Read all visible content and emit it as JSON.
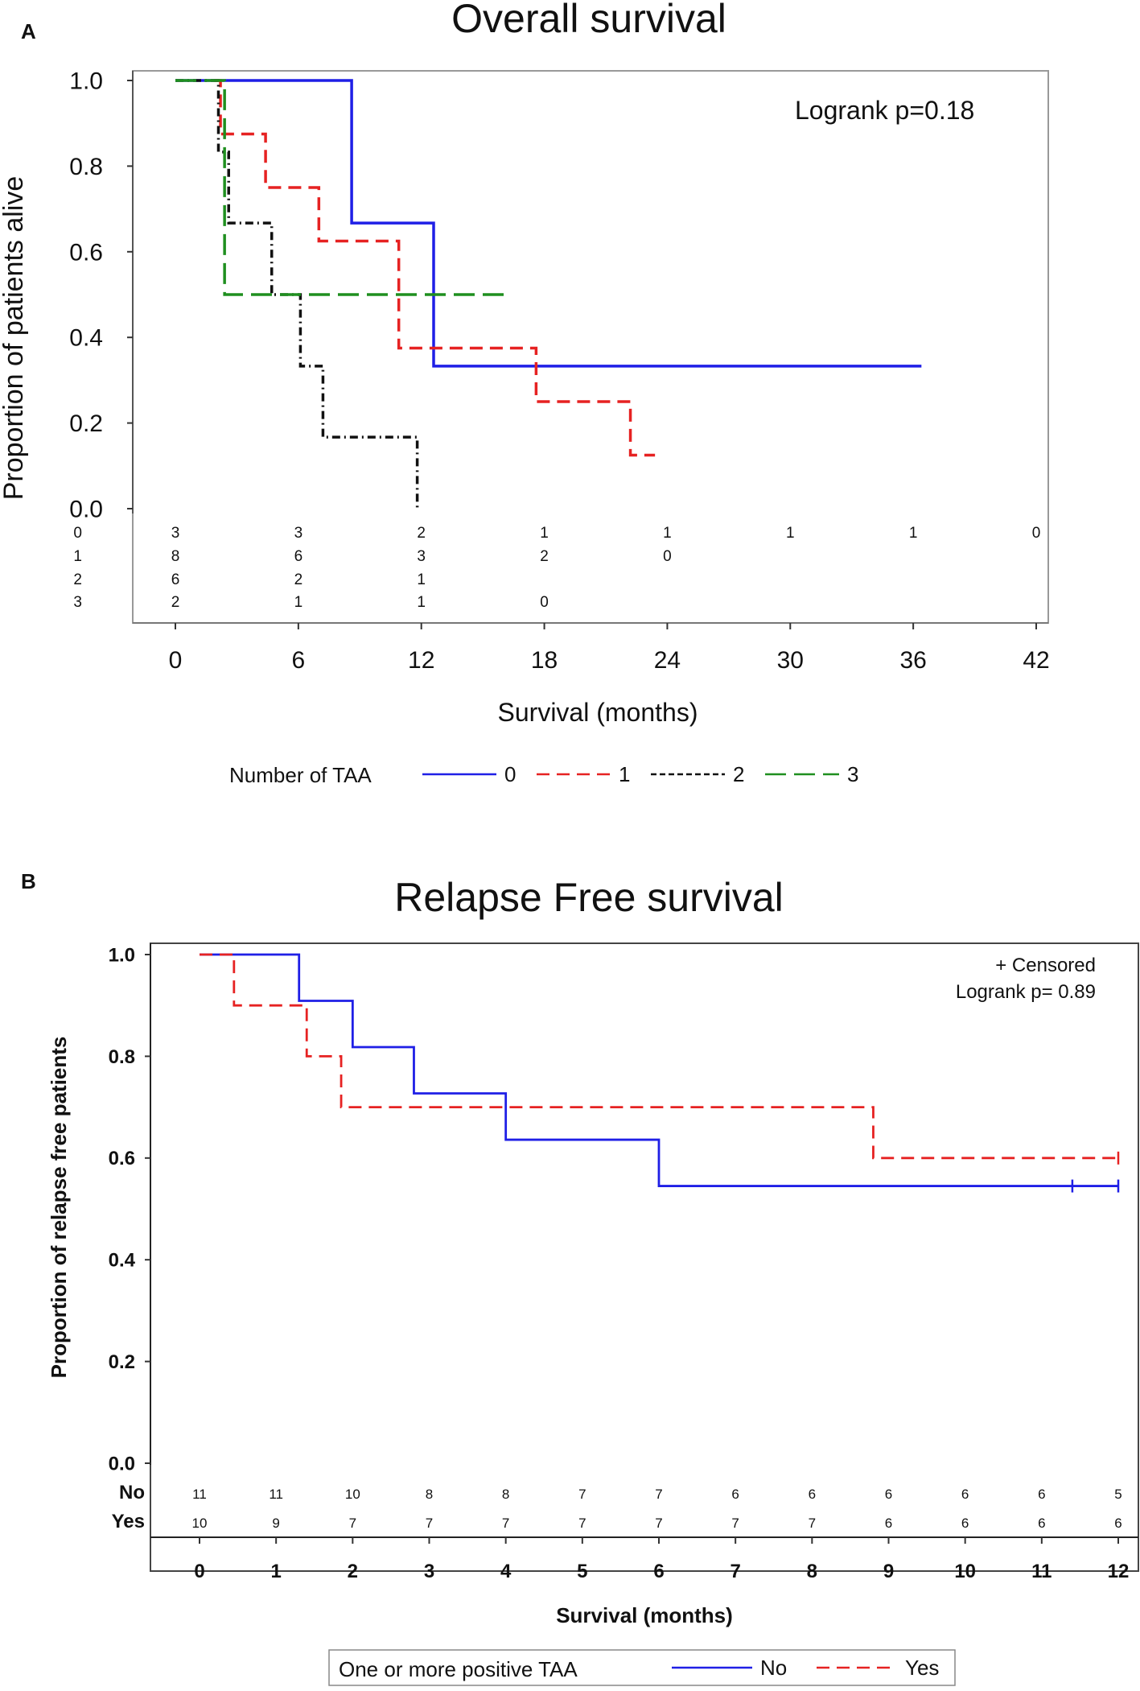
{
  "chart_data": [
    {
      "panel_label": "A",
      "type": "line",
      "subtype": "kaplan-meier",
      "title": "Overall survival",
      "xlabel": "Survival (months)",
      "ylabel": "Proportion of patients alive",
      "xlim": [
        0,
        42
      ],
      "ylim": [
        0,
        1.0
      ],
      "x_ticks": [
        0,
        6,
        12,
        18,
        24,
        30,
        36,
        42
      ],
      "y_ticks": [
        0.0,
        0.2,
        0.4,
        0.6,
        0.8,
        1.0
      ],
      "x_tick_labels": [
        "0",
        "6",
        "12",
        "18",
        "24",
        "30",
        "36",
        "42"
      ],
      "y_tick_labels": [
        "0.0",
        "0.2",
        "0.4",
        "0.6",
        "0.8",
        "1.0"
      ],
      "annotation": "Logrank p=0.18",
      "legend_title": "Number of TAA",
      "legend_position": "bottom",
      "series": [
        {
          "name": "0",
          "color": "#1f1fe6",
          "dash": "solid",
          "steps": [
            [
              0,
              1.0
            ],
            [
              8.6,
              0.667
            ],
            [
              12.6,
              0.333
            ],
            [
              36.4,
              0.333
            ]
          ]
        },
        {
          "name": "1",
          "color": "#e62222",
          "dash": "dashed",
          "steps": [
            [
              1.9,
              1.0
            ],
            [
              2.2,
              0.875
            ],
            [
              4.4,
              0.75
            ],
            [
              7.0,
              0.625
            ],
            [
              10.9,
              0.375
            ],
            [
              17.6,
              0.25
            ],
            [
              22.2,
              0.125
            ],
            [
              23.4,
              0.125
            ]
          ]
        },
        {
          "name": "2",
          "color": "#111111",
          "dash": "dashdot",
          "steps": [
            [
              0,
              1.0
            ],
            [
              2.1,
              0.833
            ],
            [
              2.6,
              0.667
            ],
            [
              4.7,
              0.5
            ],
            [
              6.1,
              0.333
            ],
            [
              7.2,
              0.167
            ],
            [
              11.8,
              0.0
            ]
          ]
        },
        {
          "name": "3",
          "color": "#1f8f1f",
          "dash": "longdash",
          "steps": [
            [
              0,
              1.0
            ],
            [
              2.4,
              0.5
            ],
            [
              16.3,
              0.5
            ]
          ]
        }
      ],
      "at_risk": {
        "x": [
          0,
          6,
          12,
          18,
          24,
          30,
          36,
          42
        ],
        "rows": [
          {
            "label": "0",
            "values": [
              "3",
              "3",
              "2",
              "1",
              "1",
              "1",
              "1",
              "0"
            ]
          },
          {
            "label": "1",
            "values": [
              "8",
              "6",
              "3",
              "2",
              "0"
            ]
          },
          {
            "label": "2",
            "values": [
              "6",
              "2",
              "1"
            ]
          },
          {
            "label": "3",
            "values": [
              "2",
              "1",
              "1",
              "0"
            ]
          }
        ]
      }
    },
    {
      "panel_label": "B",
      "type": "line",
      "subtype": "kaplan-meier",
      "title": "Relapse Free survival",
      "xlabel": "Survival (months)",
      "ylabel": "Proportion of relapse free patients",
      "xlim": [
        0,
        12
      ],
      "ylim": [
        0,
        1.0
      ],
      "x_ticks": [
        0,
        1,
        2,
        3,
        4,
        5,
        6,
        7,
        8,
        9,
        10,
        11,
        12
      ],
      "y_ticks": [
        0.0,
        0.2,
        0.4,
        0.6,
        0.8,
        1.0
      ],
      "x_tick_labels": [
        "0",
        "1",
        "2",
        "3",
        "4",
        "5",
        "6",
        "7",
        "8",
        "9",
        "10",
        "11",
        "12"
      ],
      "y_tick_labels": [
        "0.0",
        "0.2",
        "0.4",
        "0.6",
        "0.8",
        "1.0"
      ],
      "annotation_censored": "+ Censored",
      "annotation": "Logrank p=  0.89",
      "legend_title": "One or more positive TAA",
      "legend_position": "bottom",
      "series": [
        {
          "name": "No",
          "color": "#1f1fe6",
          "dash": "solid",
          "steps": [
            [
              0,
              1.0
            ],
            [
              1.3,
              0.909
            ],
            [
              2.0,
              0.818
            ],
            [
              2.8,
              0.727
            ],
            [
              4.0,
              0.636
            ],
            [
              6.0,
              0.545
            ],
            [
              12.0,
              0.545
            ]
          ],
          "censored": [
            [
              11.4,
              0.545
            ],
            [
              12.0,
              0.545
            ]
          ]
        },
        {
          "name": "Yes",
          "color": "#e62222",
          "dash": "dashed",
          "steps": [
            [
              0,
              1.0
            ],
            [
              0.45,
              0.9
            ],
            [
              1.4,
              0.8
            ],
            [
              1.85,
              0.7
            ],
            [
              8.8,
              0.6
            ],
            [
              12.0,
              0.6
            ]
          ],
          "censored": [
            [
              12.0,
              0.6
            ]
          ]
        }
      ],
      "at_risk": {
        "x": [
          0,
          1,
          2,
          3,
          4,
          5,
          6,
          7,
          8,
          9,
          10,
          11,
          12
        ],
        "rows": [
          {
            "label": "No",
            "values": [
              "11",
              "11",
              "10",
              "8",
              "8",
              "7",
              "7",
              "6",
              "6",
              "6",
              "6",
              "6",
              "5"
            ]
          },
          {
            "label": "Yes",
            "values": [
              "10",
              "9",
              "7",
              "7",
              "7",
              "7",
              "7",
              "7",
              "7",
              "6",
              "6",
              "6",
              "6"
            ]
          }
        ]
      }
    }
  ]
}
